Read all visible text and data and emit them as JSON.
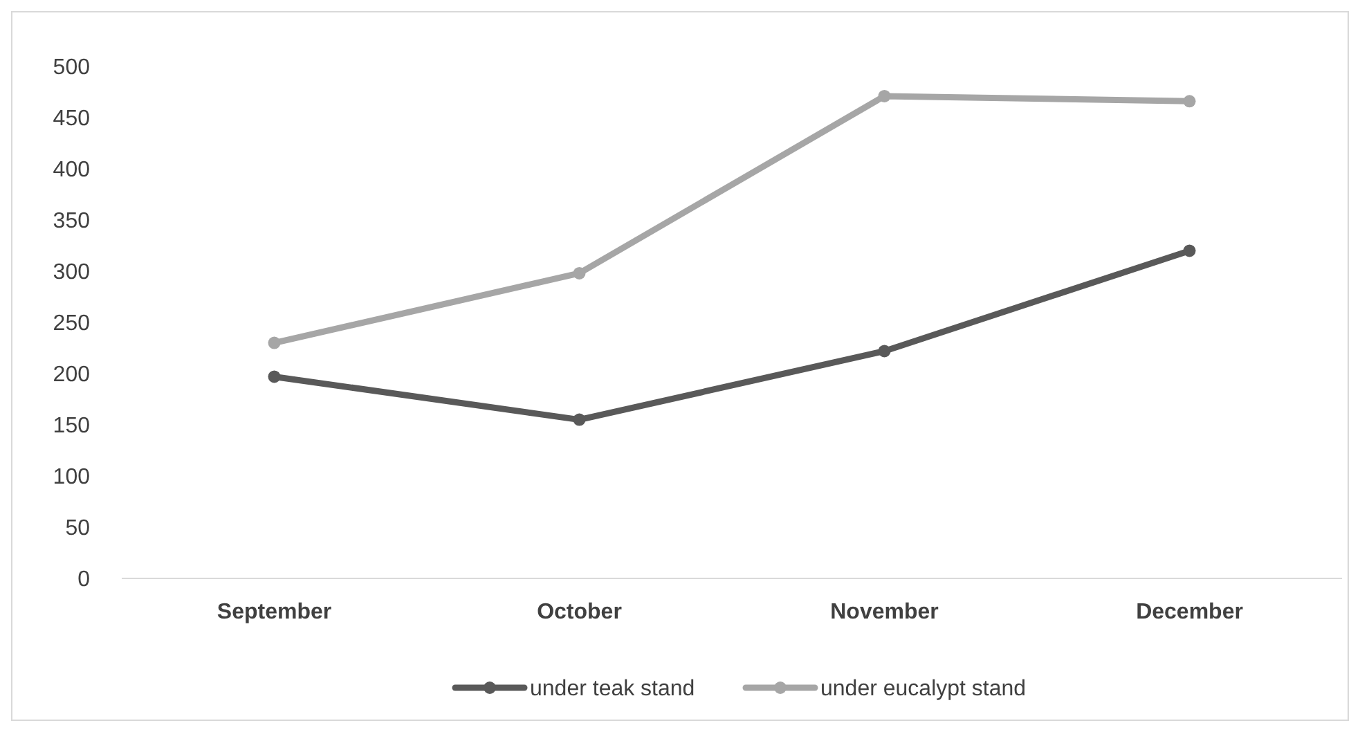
{
  "chart_data": {
    "type": "line",
    "categories": [
      "September",
      "October",
      "November",
      "December"
    ],
    "series": [
      {
        "name": "under teak stand",
        "color": "#595959",
        "values": [
          197,
          155,
          222,
          320
        ]
      },
      {
        "name": "under eucalypt stand",
        "color": "#a6a6a6",
        "values": [
          230,
          298,
          471,
          466
        ]
      }
    ],
    "ylim": [
      0,
      500
    ],
    "yticks": [
      0,
      50,
      100,
      150,
      200,
      250,
      300,
      350,
      400,
      450,
      500
    ],
    "grid": false,
    "legend": "bottom",
    "marker": "circle",
    "line_style": "solid"
  }
}
